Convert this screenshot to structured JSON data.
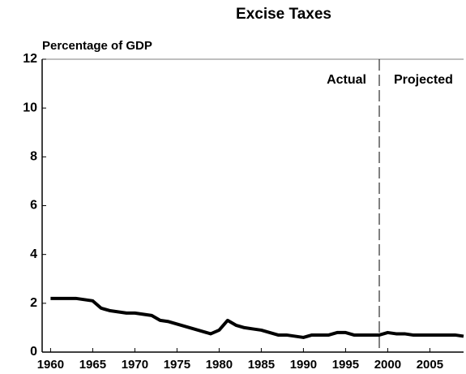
{
  "chart_data": {
    "type": "line",
    "title": "Excise Taxes",
    "ylabel": "Percentage of GDP",
    "x": [
      1960,
      1961,
      1962,
      1963,
      1964,
      1965,
      1966,
      1967,
      1968,
      1969,
      1970,
      1971,
      1972,
      1973,
      1974,
      1975,
      1976,
      1977,
      1978,
      1979,
      1980,
      1981,
      1982,
      1983,
      1984,
      1985,
      1986,
      1987,
      1988,
      1989,
      1990,
      1991,
      1992,
      1993,
      1994,
      1995,
      1996,
      1997,
      1998,
      1999,
      2000,
      2001,
      2002,
      2003,
      2004,
      2005,
      2006,
      2007,
      2008,
      2009
    ],
    "series": [
      {
        "color": "#000000",
        "values": [
          2.2,
          2.2,
          2.2,
          2.2,
          2.15,
          2.1,
          1.8,
          1.7,
          1.65,
          1.6,
          1.6,
          1.55,
          1.5,
          1.3,
          1.25,
          1.15,
          1.05,
          0.95,
          0.85,
          0.75,
          0.9,
          1.3,
          1.1,
          1.0,
          0.95,
          0.9,
          0.8,
          0.7,
          0.7,
          0.65,
          0.6,
          0.7,
          0.7,
          0.7,
          0.8,
          0.8,
          0.7,
          0.7,
          0.7,
          0.7,
          0.8,
          0.75,
          0.75,
          0.7,
          0.7,
          0.7,
          0.7,
          0.7,
          0.7,
          0.65
        ]
      }
    ],
    "xlim": [
      1959,
      2009
    ],
    "xticks": [
      1960,
      1965,
      1970,
      1975,
      1980,
      1985,
      1990,
      1995,
      2000,
      2005
    ],
    "ylim": [
      0,
      12
    ],
    "yticks": [
      0,
      2,
      4,
      6,
      8,
      10,
      12
    ],
    "divider_x": 1999,
    "annotations": [
      "Actual",
      "Projected"
    ]
  }
}
